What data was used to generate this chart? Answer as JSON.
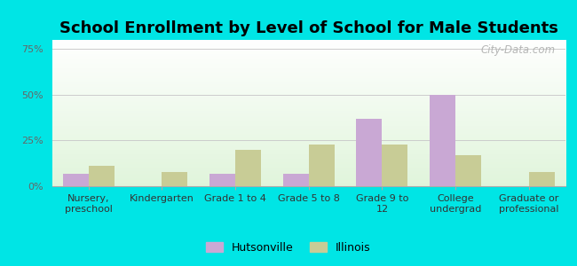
{
  "title": "School Enrollment by Level of School for Male Students",
  "categories": [
    "Nursery,\npreschool",
    "Kindergarten",
    "Grade 1 to 4",
    "Grade 5 to 8",
    "Grade 9 to\n12",
    "College\nundergrad",
    "Graduate or\nprofessional"
  ],
  "hutsonville": [
    7,
    0,
    7,
    7,
    37,
    50,
    0
  ],
  "illinois": [
    11,
    8,
    20,
    23,
    23,
    17,
    8
  ],
  "hutsonville_color": "#c9a8d4",
  "illinois_color": "#c8cc96",
  "background_color": "#00e5e5",
  "ylim": [
    0,
    80
  ],
  "yticks": [
    0,
    25,
    50,
    75
  ],
  "ytick_labels": [
    "0%",
    "25%",
    "50%",
    "75%"
  ],
  "legend_hutsonville": "Hutsonville",
  "legend_illinois": "Illinois",
  "bar_width": 0.35,
  "title_fontsize": 13,
  "tick_fontsize": 8,
  "legend_fontsize": 9,
  "watermark": "City-Data.com"
}
